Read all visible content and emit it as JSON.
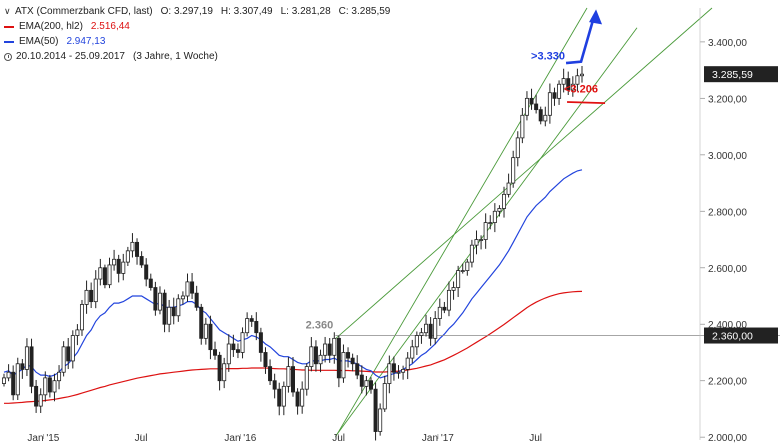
{
  "legend": {
    "instrument": "ATX (Commerzbank CFD, last)",
    "open": "O: 3.297,19",
    "high": "H: 3.307,49",
    "low": "L: 3.281,28",
    "close": "C: 3.285,59",
    "ema200_label": "EMA(200, hl2)",
    "ema200_value": "2.516,44",
    "ema50_label": "EMA(50)",
    "ema50_value": "2.947,13",
    "period": "20.10.2014 - 25.09.2017",
    "period_note": "(3 Jahre, 1 Woche)"
  },
  "colors": {
    "ema200": "#dd1111",
    "ema50": "#2244dd",
    "channel": "#4a9a3a",
    "candle": "#222222",
    "annotation_blue": "#1f3fe0",
    "annotation_red": "#e01010"
  },
  "chart_data": {
    "type": "candlestick",
    "title": "ATX (Commerzbank CFD, last)",
    "x_range": [
      "2014-10-20",
      "2017-09-25"
    ],
    "x_ticks": [
      "Jan '15",
      "Jul",
      "Jan '16",
      "Jul",
      "Jan '17",
      "Jul"
    ],
    "y_ticks": [
      "2.000,00",
      "2.200,00",
      "2.400,00",
      "2.600,00",
      "2.800,00",
      "3.000,00",
      "3.200,00",
      "3.400,00"
    ],
    "y_tick_values": [
      2000,
      2200,
      2400,
      2600,
      2800,
      3000,
      3200,
      3400
    ],
    "ylim": [
      1990,
      3520
    ],
    "grid": false,
    "price_label": "3.285,59",
    "price_value": 3285.59,
    "level_label": "2.360,00",
    "level_value": 2360,
    "level_annotation": "2.360",
    "target_up_label": ">3.330",
    "target_up_value": 3330,
    "target_down_label": "<3.206",
    "target_down_value": 3206,
    "close_series": [
      2210,
      2230,
      2150,
      2260,
      2240,
      2320,
      2180,
      2110,
      2150,
      2210,
      2160,
      2200,
      2230,
      2320,
      2270,
      2360,
      2380,
      2470,
      2520,
      2480,
      2560,
      2600,
      2540,
      2610,
      2630,
      2580,
      2620,
      2660,
      2690,
      2640,
      2610,
      2560,
      2530,
      2450,
      2510,
      2400,
      2460,
      2430,
      2490,
      2500,
      2550,
      2510,
      2460,
      2350,
      2400,
      2310,
      2290,
      2200,
      2260,
      2330,
      2310,
      2300,
      2370,
      2420,
      2410,
      2370,
      2300,
      2250,
      2200,
      2170,
      2110,
      2180,
      2250,
      2160,
      2110,
      2170,
      2250,
      2320,
      2260,
      2290,
      2330,
      2290,
      2350,
      2210,
      2300,
      2280,
      2260,
      2220,
      2180,
      2200,
      2170,
      2020,
      2100,
      2190,
      2260,
      2230,
      2230,
      2240,
      2280,
      2320,
      2360,
      2370,
      2400,
      2350,
      2420,
      2460,
      2450,
      2520,
      2530,
      2590,
      2590,
      2620,
      2680,
      2700,
      2700,
      2760,
      2760,
      2800,
      2810,
      2860,
      2900,
      2990,
      3060,
      3140,
      3200,
      3180,
      3160,
      3120,
      3140,
      3220,
      3200,
      3250,
      3270,
      3230,
      3250,
      3280,
      3285.59
    ],
    "ema50_series": [
      2230,
      2235,
      2220,
      2230,
      2240,
      2255,
      2250,
      2230,
      2220,
      2220,
      2215,
      2220,
      2230,
      2250,
      2260,
      2280,
      2300,
      2330,
      2360,
      2380,
      2410,
      2430,
      2440,
      2460,
      2475,
      2475,
      2480,
      2490,
      2500,
      2500,
      2500,
      2490,
      2480,
      2470,
      2475,
      2460,
      2460,
      2460,
      2465,
      2470,
      2480,
      2480,
      2470,
      2450,
      2440,
      2420,
      2400,
      2380,
      2370,
      2360,
      2350,
      2340,
      2345,
      2350,
      2360,
      2355,
      2345,
      2330,
      2320,
      2305,
      2290,
      2285,
      2285,
      2275,
      2265,
      2260,
      2260,
      2270,
      2270,
      2270,
      2275,
      2275,
      2280,
      2270,
      2270,
      2270,
      2265,
      2260,
      2250,
      2240,
      2235,
      2220,
      2210,
      2215,
      2220,
      2225,
      2230,
      2240,
      2250,
      2260,
      2275,
      2290,
      2300,
      2315,
      2330,
      2350,
      2365,
      2385,
      2400,
      2420,
      2440,
      2465,
      2490,
      2510,
      2530,
      2550,
      2570,
      2590,
      2610,
      2635,
      2660,
      2690,
      2720,
      2750,
      2780,
      2800,
      2820,
      2835,
      2850,
      2870,
      2885,
      2900,
      2915,
      2925,
      2935,
      2943,
      2947.13
    ],
    "ema200_series": [
      2120,
      2120,
      2121,
      2122,
      2123,
      2125,
      2126,
      2127,
      2128,
      2130,
      2132,
      2134,
      2137,
      2140,
      2143,
      2147,
      2151,
      2156,
      2161,
      2166,
      2171,
      2176,
      2180,
      2185,
      2189,
      2193,
      2197,
      2201,
      2205,
      2209,
      2212,
      2215,
      2218,
      2221,
      2224,
      2226,
      2228,
      2230,
      2232,
      2234,
      2236,
      2238,
      2239,
      2240,
      2241,
      2242,
      2242,
      2242,
      2242,
      2243,
      2243,
      2243,
      2244,
      2244,
      2245,
      2245,
      2245,
      2245,
      2244,
      2243,
      2242,
      2242,
      2241,
      2240,
      2239,
      2238,
      2238,
      2237,
      2237,
      2237,
      2237,
      2237,
      2237,
      2236,
      2236,
      2236,
      2235,
      2235,
      2234,
      2233,
      2232,
      2231,
      2231,
      2231,
      2232,
      2233,
      2234,
      2236,
      2238,
      2241,
      2244,
      2248,
      2252,
      2256,
      2262,
      2268,
      2274,
      2282,
      2290,
      2298,
      2307,
      2316,
      2326,
      2336,
      2346,
      2356,
      2366,
      2377,
      2388,
      2399,
      2411,
      2423,
      2435,
      2447,
      2459,
      2469,
      2478,
      2486,
      2493,
      2499,
      2504,
      2508,
      2511,
      2513,
      2515,
      2516,
      2516.44
    ]
  }
}
